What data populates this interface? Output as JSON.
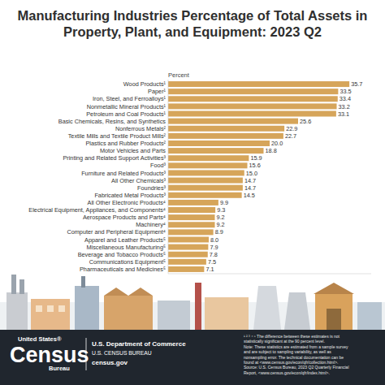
{
  "chart_data": {
    "type": "bar",
    "orientation": "horizontal",
    "title": "Manufacturing Industries Percentage of Total Assets in Property, Plant, and Equipment: 2023 Q2",
    "xlabel": "Percent",
    "categories": [
      "Wood Products¹",
      "Paper¹",
      "Iron, Steel, and Ferroalloys¹",
      "Nonmetallic Mineral Products¹",
      "Petroleum and Coal Products¹",
      "Basic Chemicals, Resins, and Synthetics",
      "Nonferrous Metals²",
      "Textile Mills and Textile Product Mills²",
      "Plastics and Rubber Products²",
      "Motor Vehicles and Parts",
      "Printing and Related Support Activities³",
      "Food³",
      "Furniture and Related Products³",
      "All Other Chemicals³",
      "Foundries³",
      "Fabricated Metal Products³",
      "All Other Electronic Products⁴",
      "Electrical Equipment, Appliances, and Components⁴",
      "Aerospace Products and Parts⁴",
      "Machinery⁴",
      "Computer and Peripheral Equipment⁴",
      "Apparel and Leather Products⁵",
      "Miscellaneous Manufacturing⁵",
      "Beverage and Tobacco Products⁵",
      "Communications Equipment⁵",
      "Pharmaceuticals and Medicines⁵"
    ],
    "values": [
      35.7,
      33.5,
      33.4,
      33.2,
      33.1,
      25.6,
      22.9,
      22.7,
      20.0,
      18.8,
      15.9,
      15.6,
      15.0,
      14.7,
      14.7,
      14.5,
      9.9,
      9.3,
      9.2,
      9.2,
      8.9,
      8.0,
      7.9,
      7.8,
      7.5,
      7.1
    ],
    "value_labels": [
      "35.7",
      "33.5",
      "33.4",
      "33.2",
      "33.1",
      "25.6",
      "22.9",
      "22.7",
      "20.0",
      "18.8",
      "15.9",
      "15.6",
      "15.0",
      "14.7",
      "14.7",
      "14.5",
      "9.9",
      "9.3",
      "9.2",
      "9.2",
      "8.9",
      "8.0",
      "7.9",
      "7.8",
      "7.5",
      "7.1"
    ],
    "color": "#d6a55a",
    "xlim": [
      0,
      40
    ],
    "data_labels": true,
    "tick_labels": false,
    "grid": false
  },
  "footer": {
    "logo_top": "United States®",
    "logo_main": "Census",
    "logo_bottom": "Bureau",
    "department": "U.S. Department of Commerce",
    "bureau": "U.S. CENSUS BUREAU",
    "website": "census.gov",
    "footnote_lines": [
      "¹ ² ³ ⁴ ⁵ The difference between these estimates is not",
      "statistically significant at the 90 percent level.",
      "Note: These statistics are estimated from a sample survey",
      "and are subject to sampling variability, as well as",
      "nonsampling error. The technical documentation can be",
      "found at <www.census.gov/econ/qfr/collection.html>.",
      "Source: U.S. Census Bureau, 2023 Q2 Quarterly Financial",
      "Report, <www.census.gov/econ/qfr/index.html>."
    ]
  }
}
